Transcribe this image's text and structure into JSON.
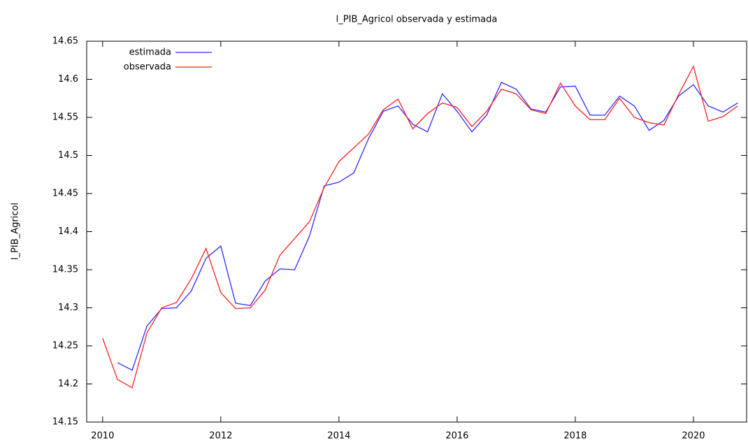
{
  "chart_data": {
    "type": "line",
    "title": "l_PIB_Agricol observada y estimada",
    "y_label": "l_PIB_Agricol",
    "x": [
      2010,
      2010.25,
      2010.5,
      2010.75,
      2011,
      2011.25,
      2011.5,
      2011.75,
      2012,
      2012.25,
      2012.5,
      2012.75,
      2013,
      2013.25,
      2013.5,
      2013.75,
      2014,
      2014.25,
      2014.5,
      2014.75,
      2015,
      2015.25,
      2015.5,
      2015.75,
      2016,
      2016.25,
      2016.5,
      2016.75,
      2017,
      2017.25,
      2017.5,
      2017.75,
      2018,
      2018.25,
      2018.5,
      2018.75,
      2019,
      2019.25,
      2019.5,
      2019.75,
      2020,
      2020.25,
      2020.5,
      2020.75
    ],
    "series": [
      {
        "name": "estimada",
        "color": "#2b2bff",
        "values": [
          null,
          14.228,
          14.218,
          14.276,
          14.299,
          14.3,
          14.322,
          14.365,
          14.381,
          14.306,
          14.303,
          14.335,
          14.351,
          14.35,
          14.394,
          14.46,
          14.465,
          14.477,
          14.522,
          14.558,
          14.565,
          14.541,
          14.531,
          14.581,
          14.558,
          14.531,
          14.553,
          14.596,
          14.587,
          14.561,
          14.557,
          14.59,
          14.591,
          14.553,
          14.553,
          14.578,
          14.565,
          14.533,
          14.546,
          14.578,
          14.593,
          14.565,
          14.557,
          14.569
        ]
      },
      {
        "name": "observada",
        "color": "#ff2020",
        "values": [
          14.26,
          14.206,
          14.195,
          14.267,
          14.3,
          14.307,
          14.338,
          14.378,
          14.32,
          14.299,
          14.3,
          14.323,
          14.369,
          14.391,
          14.413,
          14.458,
          14.492,
          14.51,
          14.528,
          14.56,
          14.574,
          14.535,
          14.555,
          14.569,
          14.563,
          14.538,
          14.558,
          14.587,
          14.581,
          14.56,
          14.555,
          14.595,
          14.565,
          14.547,
          14.547,
          14.575,
          14.55,
          14.543,
          14.54,
          14.58,
          14.617,
          14.545,
          14.551,
          14.565
        ]
      }
    ],
    "xlim": [
      2009.73,
      2020.9
    ],
    "xticks": [
      2010,
      2012,
      2014,
      2016,
      2018,
      2020
    ],
    "ylim": [
      14.15,
      14.65
    ],
    "yticks": [
      14.15,
      14.2,
      14.25,
      14.3,
      14.35,
      14.4,
      14.45,
      14.5,
      14.55,
      14.6,
      14.65
    ],
    "legend": "upper-left"
  }
}
